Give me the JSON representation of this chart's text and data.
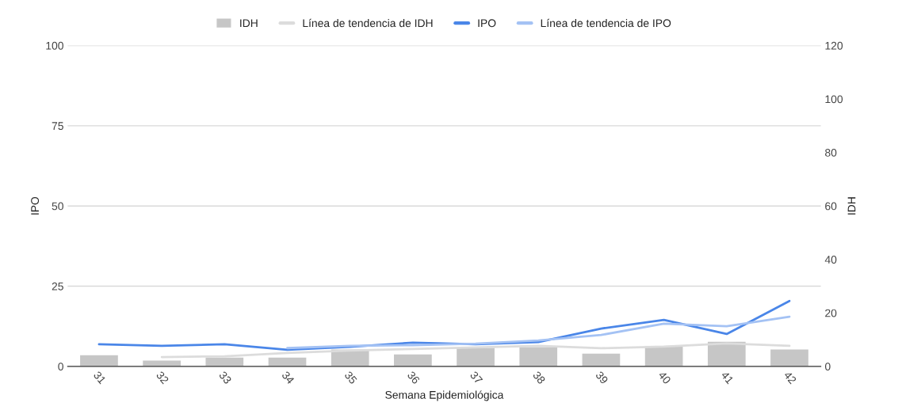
{
  "chart_data": {
    "type": "bar",
    "xlabel": "Semana Epidemiológica",
    "ylabel": "IPO",
    "y2label": "IDH",
    "categories": [
      "31",
      "32",
      "33",
      "34",
      "35",
      "36",
      "37",
      "38",
      "39",
      "40",
      "41",
      "42"
    ],
    "series": [
      {
        "name": "IDH",
        "axis": "y2",
        "color": "#c6c6c6",
        "values": [
          4.4,
          2.4,
          3.5,
          3.5,
          6.5,
          4.7,
          7.1,
          7.4,
          5.0,
          7.7,
          9.4,
          6.5
        ]
      },
      {
        "name": "Línea de tendencia de IDH",
        "type": "line",
        "axis": "y2",
        "color": "#dcdcdc",
        "values": [
          null,
          3.5,
          3.8,
          5.0,
          5.9,
          6.5,
          7.1,
          7.7,
          6.8,
          7.4,
          8.6,
          7.7
        ]
      },
      {
        "name": "IPO",
        "type": "line",
        "color": "#4a86e8",
        "values": [
          6.9,
          6.4,
          6.9,
          5.2,
          6.1,
          7.4,
          6.9,
          7.6,
          11.8,
          14.5,
          10.1,
          20.4
        ]
      },
      {
        "name": "Línea de tendencia de IPO",
        "type": "line",
        "color": "#a4c2f4",
        "values": [
          null,
          null,
          null,
          5.7,
          6.4,
          6.6,
          7.1,
          8.1,
          9.8,
          13.3,
          12.5,
          15.5
        ]
      }
    ],
    "ylim": [
      0,
      100
    ],
    "yticks": [
      0,
      25,
      50,
      75,
      100
    ],
    "y2lim": [
      0,
      120
    ],
    "y2ticks": [
      0,
      20,
      40,
      60,
      80,
      100,
      120
    ],
    "grid": "y",
    "legend": "top"
  }
}
